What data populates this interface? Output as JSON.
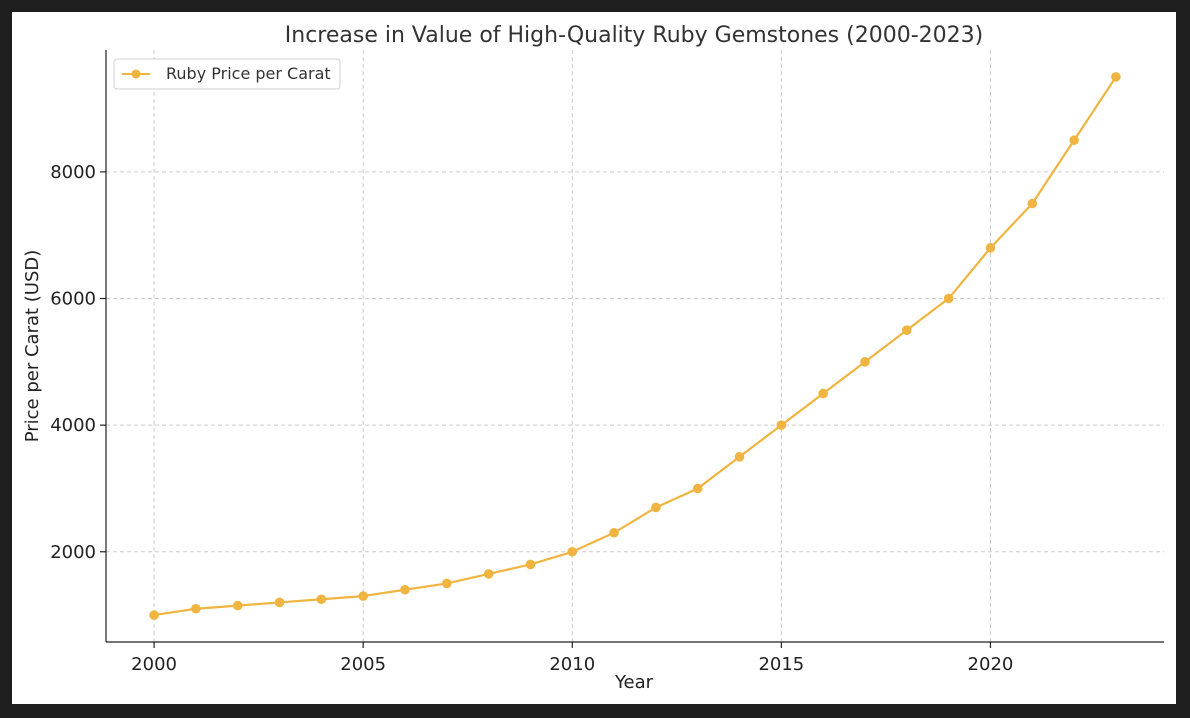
{
  "chart_data": {
    "type": "line",
    "title": "Increase in Value of High-Quality Ruby Gemstones (2000-2023)",
    "xlabel": "Year",
    "ylabel": "Price per Carat (USD)",
    "x": [
      2000,
      2001,
      2002,
      2003,
      2004,
      2005,
      2006,
      2007,
      2008,
      2009,
      2010,
      2011,
      2012,
      2013,
      2014,
      2015,
      2016,
      2017,
      2018,
      2019,
      2020,
      2021,
      2022,
      2023
    ],
    "series": [
      {
        "name": "Ruby Price per Carat",
        "color": "#f0b440",
        "values": [
          1000,
          1100,
          1150,
          1200,
          1250,
          1300,
          1400,
          1500,
          1650,
          1800,
          2000,
          2300,
          2700,
          3000,
          3500,
          4000,
          4500,
          5000,
          5500,
          6000,
          6800,
          7500,
          8500,
          9500
        ]
      }
    ],
    "xlim": [
      1998.85,
      2024.15
    ],
    "ylim": [
      575,
      9925
    ],
    "xticks": [
      2000,
      2005,
      2010,
      2015,
      2020
    ],
    "yticks": [
      2000,
      4000,
      6000,
      8000
    ],
    "grid": true,
    "legend_position": "top-left"
  }
}
